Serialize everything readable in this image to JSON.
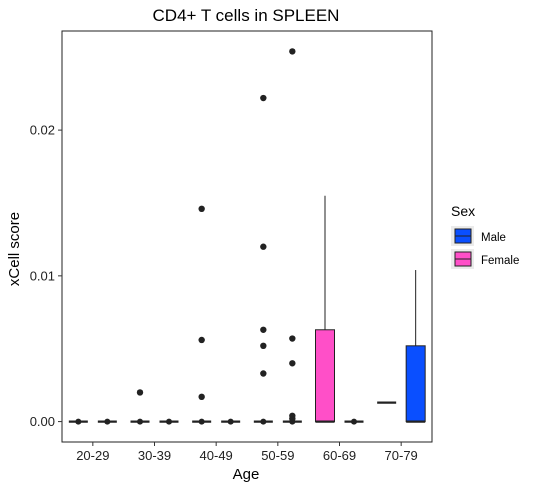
{
  "chart_data": {
    "type": "boxplot",
    "title": "CD4+ T cells in SPLEEN",
    "xlabel": "Age",
    "ylabel": "xCell score",
    "ylim": [
      -0.0014,
      0.0268
    ],
    "yticks": [
      0.0,
      0.01,
      0.02
    ],
    "ytick_labels": [
      "0.00",
      "0.01",
      "0.02"
    ],
    "categories": [
      "20-29",
      "30-39",
      "40-49",
      "50-59",
      "60-69",
      "70-79"
    ],
    "grid": false,
    "legend": {
      "title": "Sex",
      "position": "right",
      "entries": [
        {
          "name": "Male",
          "color": "#0a4fff"
        },
        {
          "name": "Female",
          "color": "#ff4fc8"
        }
      ]
    },
    "series": [
      {
        "name": "Female",
        "color": "#ff4fc8",
        "boxes": [
          {
            "category": "20-29",
            "min": 0,
            "q1": 0,
            "median": 0,
            "q3": 0,
            "max": 0,
            "outliers": []
          },
          {
            "category": "30-39",
            "min": 0,
            "q1": 0,
            "median": 0,
            "q3": 0,
            "max": 0,
            "outliers": [
              0.002
            ]
          },
          {
            "category": "40-49",
            "min": 0,
            "q1": 0,
            "median": 0,
            "q3": 0,
            "max": 0,
            "outliers": [
              0.0146,
              0.0056,
              0.0017
            ]
          },
          {
            "category": "50-59",
            "min": 0,
            "q1": 0,
            "median": 0,
            "q3": 0,
            "max": 0,
            "outliers": [
              0.0222,
              0.012,
              0.0063,
              0.0052,
              0.0033
            ]
          },
          {
            "category": "60-69",
            "min": 0,
            "q1": 0,
            "median": 0,
            "q3": 0.0063,
            "max": 0.0155,
            "outliers": []
          },
          {
            "category": "70-79",
            "min": 0.0013,
            "q1": 0.0013,
            "median": 0.0013,
            "q3": 0.0013,
            "max": 0.0013,
            "outliers": []
          }
        ]
      },
      {
        "name": "Male",
        "color": "#0a4fff",
        "boxes": [
          {
            "category": "20-29",
            "min": 0,
            "q1": 0,
            "median": 0,
            "q3": 0,
            "max": 0,
            "outliers": []
          },
          {
            "category": "30-39",
            "min": 0,
            "q1": 0,
            "median": 0,
            "q3": 0,
            "max": 0,
            "outliers": []
          },
          {
            "category": "40-49",
            "min": 0,
            "q1": 0,
            "median": 0,
            "q3": 0,
            "max": 0,
            "outliers": []
          },
          {
            "category": "50-59",
            "min": 0,
            "q1": 0,
            "median": 0,
            "q3": 0,
            "max": 0,
            "outliers": [
              0.0254,
              0.0057,
              0.004,
              0.0004,
              0.0002
            ]
          },
          {
            "category": "60-69",
            "min": 0,
            "q1": 0,
            "median": 0,
            "q3": 0,
            "max": 0,
            "outliers": []
          },
          {
            "category": "70-79",
            "min": 0,
            "q1": 0,
            "median": 0,
            "q3": 0.0052,
            "max": 0.0104,
            "outliers": []
          }
        ]
      }
    ]
  }
}
